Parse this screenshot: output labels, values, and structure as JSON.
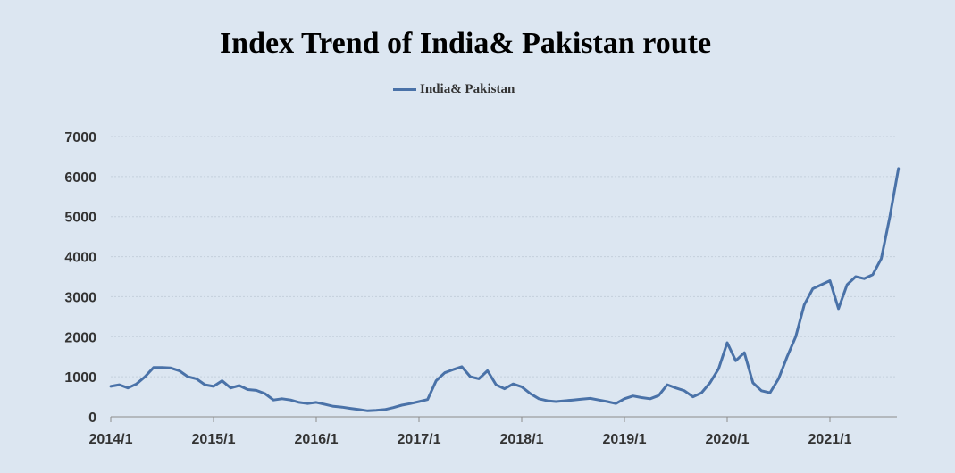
{
  "chart_data": {
    "type": "line",
    "title": "Index Trend of India& Pakistan route",
    "legend": [
      "India& Pakistan"
    ],
    "legend_position": "top-center",
    "xlabel": "",
    "ylabel": "",
    "ylim": [
      0,
      7000
    ],
    "yticks": [
      "0",
      "1000",
      "2000",
      "3000",
      "4000",
      "5000",
      "6000",
      "7000"
    ],
    "xticks": [
      "2014/1",
      "2015/1",
      "2016/1",
      "2017/1",
      "2018/1",
      "2019/1",
      "2020/1",
      "2021/1"
    ],
    "grid": "horizontal",
    "color": "#4a72a8",
    "series": [
      {
        "name": "India& Pakistan",
        "x": [
          "2014/1",
          "2014/2",
          "2014/3",
          "2014/4",
          "2014/5",
          "2014/6",
          "2014/7",
          "2014/8",
          "2014/9",
          "2014/10",
          "2014/11",
          "2014/12",
          "2015/1",
          "2015/2",
          "2015/3",
          "2015/4",
          "2015/5",
          "2015/6",
          "2015/7",
          "2015/8",
          "2015/9",
          "2015/10",
          "2015/11",
          "2015/12",
          "2016/1",
          "2016/2",
          "2016/3",
          "2016/4",
          "2016/5",
          "2016/6",
          "2016/7",
          "2016/8",
          "2016/9",
          "2016/10",
          "2016/11",
          "2016/12",
          "2017/1",
          "2017/2",
          "2017/3",
          "2017/4",
          "2017/5",
          "2017/6",
          "2017/7",
          "2017/8",
          "2017/9",
          "2017/10",
          "2017/11",
          "2017/12",
          "2018/1",
          "2018/2",
          "2018/3",
          "2018/4",
          "2018/5",
          "2018/6",
          "2018/7",
          "2018/8",
          "2018/9",
          "2018/10",
          "2018/11",
          "2018/12",
          "2019/1",
          "2019/2",
          "2019/3",
          "2019/4",
          "2019/5",
          "2019/6",
          "2019/7",
          "2019/8",
          "2019/9",
          "2019/10",
          "2019/11",
          "2019/12",
          "2020/1",
          "2020/2",
          "2020/3",
          "2020/4",
          "2020/5",
          "2020/6",
          "2020/7",
          "2020/8",
          "2020/9",
          "2020/10",
          "2020/11",
          "2020/12",
          "2021/1",
          "2021/2",
          "2021/3",
          "2021/4",
          "2021/5",
          "2021/6",
          "2021/7",
          "2021/8",
          "2021/9"
        ],
        "values": [
          760,
          800,
          720,
          820,
          1000,
          1230,
          1230,
          1220,
          1150,
          1000,
          950,
          800,
          760,
          900,
          720,
          780,
          680,
          660,
          580,
          420,
          450,
          420,
          360,
          330,
          360,
          310,
          260,
          240,
          210,
          180,
          150,
          160,
          180,
          230,
          290,
          330,
          380,
          430,
          900,
          1100,
          1180,
          1250,
          1000,
          950,
          1150,
          800,
          700,
          820,
          750,
          580,
          450,
          400,
          380,
          400,
          420,
          440,
          460,
          420,
          380,
          330,
          450,
          520,
          480,
          450,
          530,
          800,
          720,
          650,
          500,
          600,
          850,
          1200,
          1850,
          1400,
          1600,
          850,
          650,
          600,
          950,
          1500,
          2000,
          2800,
          3200,
          3300,
          3400,
          2700,
          3300,
          3500,
          3450,
          3550,
          3950,
          5000,
          6200
        ]
      }
    ]
  }
}
